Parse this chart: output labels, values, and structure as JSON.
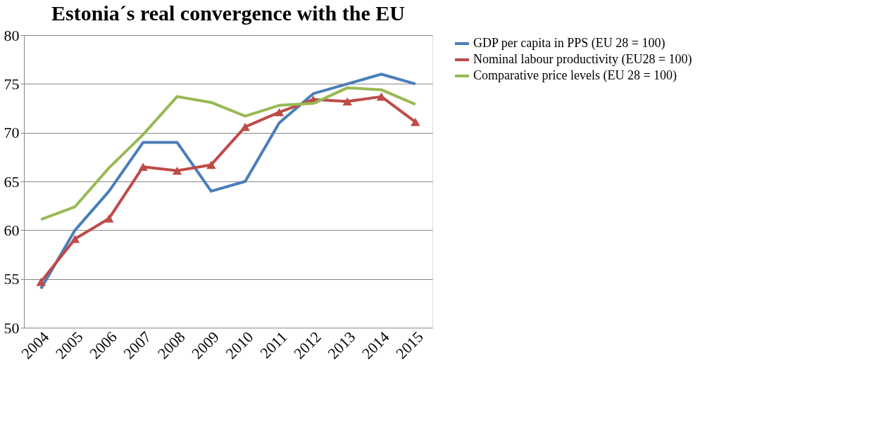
{
  "chart_data": {
    "type": "line",
    "title": "Estonia´s real convergence with the EU",
    "categories": [
      "2004",
      "2005",
      "2006",
      "2007",
      "2008",
      "2009",
      "2010",
      "2011",
      "2012",
      "2013",
      "2014",
      "2015"
    ],
    "series": [
      {
        "name": "GDP per capita in PPS (EU 28 = 100)",
        "color": "#4a7ebb",
        "marker": "none",
        "values": [
          54,
          60,
          64,
          69,
          69,
          64,
          65,
          71,
          74,
          75,
          76,
          75
        ]
      },
      {
        "name": "Nominal labour productivity (EU28 = 100)",
        "color": "#be4b48",
        "marker": "triangle",
        "values": [
          54.7,
          59.1,
          61.2,
          66.5,
          66.1,
          66.7,
          70.6,
          72.1,
          73.4,
          73.2,
          73.7,
          71.1
        ]
      },
      {
        "name": "Comparative price levels (EU 28 = 100)",
        "color": "#98b954",
        "marker": "none",
        "values": [
          61.1,
          62.4,
          66.4,
          69.8,
          73.7,
          73.1,
          71.7,
          72.8,
          73.0,
          74.6,
          74.4,
          72.9
        ]
      }
    ],
    "ylim": [
      50,
      80
    ],
    "yticks": [
      50,
      55,
      60,
      65,
      70,
      75,
      80
    ],
    "grid": "y",
    "legend": "right"
  }
}
